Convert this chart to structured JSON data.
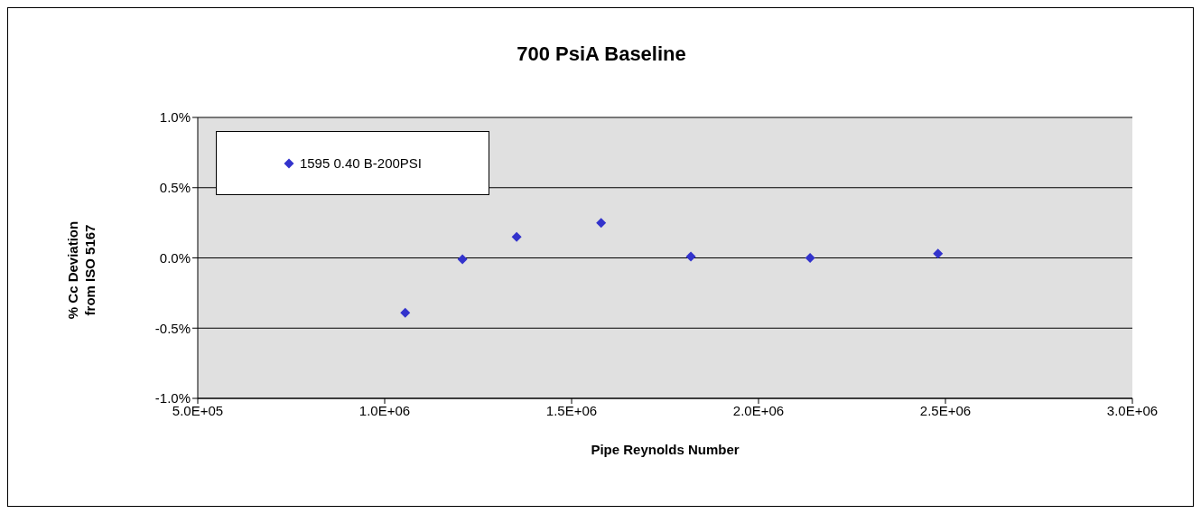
{
  "chart_data": {
    "type": "scatter",
    "title": "700 PsiA Baseline",
    "xlabel": "Pipe Reynolds Number",
    "ylabel": "% Cc Deviation from ISO 5167",
    "x": [
      1055000,
      1208000,
      1353000,
      1579000,
      1819000,
      2138000,
      2480000
    ],
    "series": [
      {
        "name": "1595 0.40 B-200PSI",
        "color": "#3333cc",
        "values": [
          -0.39,
          -0.01,
          0.15,
          0.25,
          0.01,
          0.0,
          0.03
        ]
      }
    ],
    "xlim": [
      500000,
      3000000
    ],
    "xticks": [
      {
        "value": 500000,
        "label": "5.0E+05"
      },
      {
        "value": 1000000,
        "label": "1.0E+06"
      },
      {
        "value": 1500000,
        "label": "1.5E+06"
      },
      {
        "value": 2000000,
        "label": "2.0E+06"
      },
      {
        "value": 2500000,
        "label": "2.5E+06"
      },
      {
        "value": 3000000,
        "label": "3.0E+06"
      }
    ],
    "ylim": [
      -1,
      1
    ],
    "yticks": [
      {
        "value": -1,
        "label": "-1.0%"
      },
      {
        "value": -0.5,
        "label": "-0.5%"
      },
      {
        "value": 0,
        "label": "0.0%"
      },
      {
        "value": 0.5,
        "label": "0.5%"
      },
      {
        "value": 1,
        "label": "1.0%"
      }
    ],
    "grid": "y",
    "legend": "top left",
    "marker": "diamond"
  }
}
